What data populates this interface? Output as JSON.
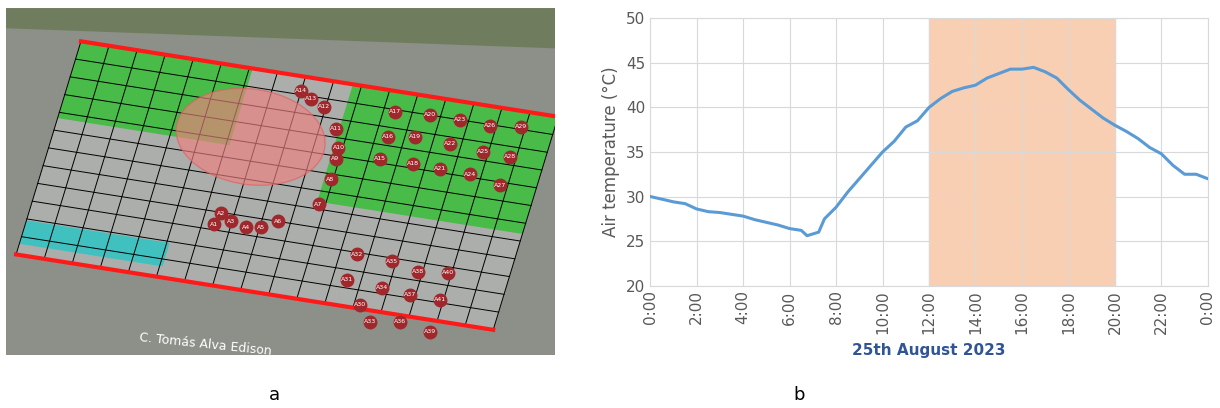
{
  "panel_labels": [
    "a",
    "b"
  ],
  "site_map": {
    "street": "C. Tomás Alva Edison",
    "sensors": [
      "A1",
      "A2",
      "A3",
      "A4",
      "A5",
      "A6",
      "A7",
      "A8",
      "A9",
      "A10",
      "A11",
      "A12",
      "A13",
      "A14",
      "A15",
      "A16",
      "A17",
      "A18",
      "A19",
      "A20",
      "A21",
      "A22",
      "A23",
      "A24",
      "A25",
      "A26",
      "A27",
      "A28",
      "A29",
      "A30",
      "A31",
      "A32",
      "A33",
      "A34",
      "A35",
      "A36",
      "A37",
      "A38",
      "A39",
      "A40",
      "A41"
    ]
  },
  "chart_data": {
    "type": "line",
    "xlabel": "25th August 2023",
    "ylabel": "Air temperature (°C)",
    "x": [
      0,
      0.5,
      1,
      1.5,
      2,
      2.5,
      3,
      3.5,
      4,
      4.5,
      5,
      5.5,
      6,
      6.5,
      6.75,
      7,
      7.25,
      7.5,
      8,
      8.5,
      9,
      9.5,
      10,
      10.5,
      11,
      11.5,
      12,
      12.5,
      13,
      13.5,
      14,
      14.5,
      15,
      15.5,
      16,
      16.5,
      17,
      17.5,
      18,
      18.5,
      19,
      19.5,
      20,
      20.5,
      21,
      21.5,
      22,
      22.5,
      23,
      23.5,
      24
    ],
    "values": [
      30.0,
      29.7,
      29.4,
      29.2,
      28.6,
      28.3,
      28.2,
      28.0,
      27.8,
      27.4,
      27.1,
      26.8,
      26.4,
      26.2,
      25.6,
      25.8,
      26.0,
      27.5,
      28.8,
      30.5,
      32.0,
      33.5,
      35.0,
      36.2,
      37.8,
      38.5,
      40.0,
      41.0,
      41.8,
      42.2,
      42.5,
      43.3,
      43.8,
      44.3,
      44.3,
      44.5,
      44.0,
      43.3,
      42.0,
      40.8,
      39.8,
      38.8,
      38.0,
      37.3,
      36.5,
      35.5,
      34.8,
      33.5,
      32.5,
      32.5,
      32.0
    ],
    "color": "#5b9bd5",
    "shaded_range": [
      12,
      20
    ],
    "xlim": [
      0,
      24
    ],
    "xticks": [
      {
        "value": 0,
        "label": "0:00"
      },
      {
        "value": 2,
        "label": "2:00"
      },
      {
        "value": 4,
        "label": "4:00"
      },
      {
        "value": 6,
        "label": "6:00"
      },
      {
        "value": 8,
        "label": "8:00"
      },
      {
        "value": 10,
        "label": "10:00"
      },
      {
        "value": 12,
        "label": "12:00"
      },
      {
        "value": 14,
        "label": "14:00"
      },
      {
        "value": 16,
        "label": "16:00"
      },
      {
        "value": 18,
        "label": "18:00"
      },
      {
        "value": 20,
        "label": "20:00"
      },
      {
        "value": 22,
        "label": "22:00"
      },
      {
        "value": 24,
        "label": "0:00"
      }
    ],
    "ylim": [
      20,
      50
    ],
    "yticks": [
      20,
      25,
      30,
      35,
      40,
      45,
      50
    ],
    "grid": true
  }
}
